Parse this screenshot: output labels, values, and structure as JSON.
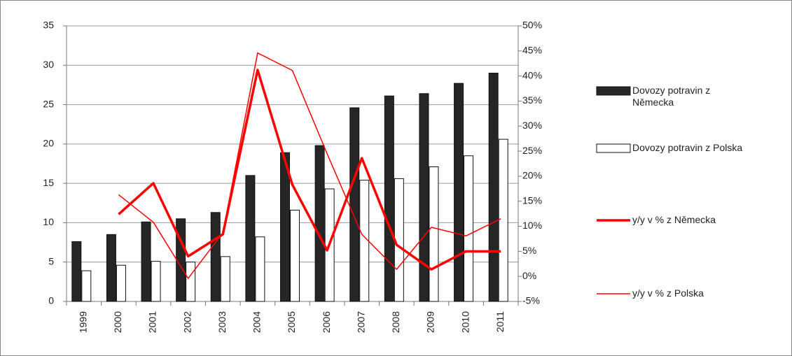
{
  "chart_data": {
    "type": "bar",
    "categories": [
      "1999",
      "2000",
      "2001",
      "2002",
      "2003",
      "2004",
      "2005",
      "2006",
      "2007",
      "2008",
      "2009",
      "2010",
      "2011"
    ],
    "series": [
      {
        "name": "Dovozy potravin z Německa",
        "type": "bar",
        "color": "#262626",
        "values": [
          7.6,
          8.5,
          10.1,
          10.5,
          11.3,
          16.0,
          18.9,
          19.8,
          24.6,
          26.1,
          26.4,
          27.7,
          29.0
        ]
      },
      {
        "name": "Dovozy potravin z Polska",
        "type": "bar",
        "color": "#ffffff",
        "values": [
          3.9,
          4.6,
          5.1,
          5.0,
          5.7,
          8.2,
          11.6,
          14.3,
          15.4,
          15.6,
          17.1,
          18.5,
          20.6
        ]
      },
      {
        "name": "y/y v % z Německa",
        "type": "line",
        "axis": "y2",
        "color": "#ff0000",
        "line_width": 3.5,
        "values": [
          null,
          12.4,
          18.6,
          4.0,
          8.4,
          41.2,
          18.3,
          5.2,
          23.6,
          6.3,
          1.4,
          5.0,
          5.0
        ]
      },
      {
        "name": "y/y v % z Polska",
        "type": "line",
        "axis": "y2",
        "color": "#ff0000",
        "line_width": 1.5,
        "values": [
          null,
          16.3,
          10.8,
          -0.4,
          8.7,
          44.6,
          41.1,
          24.5,
          8.4,
          1.4,
          9.8,
          8.1,
          11.5
        ]
      }
    ],
    "ylim": [
      0,
      35
    ],
    "yticks": [
      0,
      5,
      10,
      15,
      20,
      25,
      30,
      35
    ],
    "y2lim": [
      -5,
      50
    ],
    "y2ticks": [
      {
        "value": -5,
        "label": "-5%"
      },
      {
        "value": 0,
        "label": "0%"
      },
      {
        "value": 5,
        "label": "5%"
      },
      {
        "value": 10,
        "label": "10%"
      },
      {
        "value": 15,
        "label": "15%"
      },
      {
        "value": 20,
        "label": "20%"
      },
      {
        "value": 25,
        "label": "25%"
      },
      {
        "value": 30,
        "label": "30%"
      },
      {
        "value": 35,
        "label": "35%"
      },
      {
        "value": 40,
        "label": "40%"
      },
      {
        "value": 45,
        "label": "45%"
      },
      {
        "value": 50,
        "label": "50%"
      }
    ],
    "grid": true,
    "legend": "right"
  }
}
